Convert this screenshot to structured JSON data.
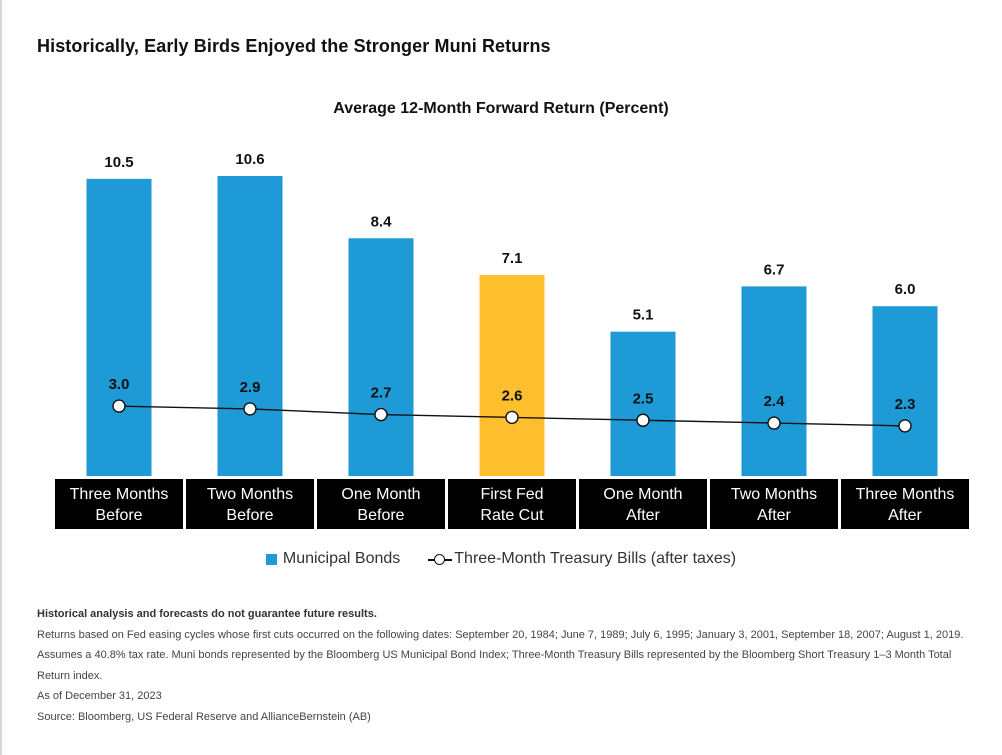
{
  "header": {
    "title": "Historically, Early Birds Enjoyed the Stronger Muni Returns"
  },
  "chart_data": {
    "type": "bar",
    "title": "Average 12-Month Forward Return (Percent)",
    "categories": [
      [
        "Three Months",
        "Before"
      ],
      [
        "Two Months",
        "Before"
      ],
      [
        "One Month",
        "Before"
      ],
      [
        "First Fed",
        "Rate Cut"
      ],
      [
        "One Month",
        "After"
      ],
      [
        "Two Months",
        "After"
      ],
      [
        "Three Months",
        "After"
      ]
    ],
    "series": [
      {
        "name": "Municipal Bonds",
        "type": "bar",
        "values": [
          10.5,
          10.6,
          8.4,
          7.1,
          5.1,
          6.7,
          6.0
        ],
        "labels": [
          "10.5",
          "10.6",
          "8.4",
          "7.1",
          "5.1",
          "6.7",
          "6.0"
        ],
        "color": "#1e9ad6",
        "highlight_index": 3,
        "highlight_color": "#fdbf2d"
      },
      {
        "name": "Three-Month Treasury Bills (after taxes)",
        "type": "line",
        "values": [
          3.0,
          2.9,
          2.7,
          2.6,
          2.5,
          2.4,
          2.3
        ],
        "labels": [
          "3.0",
          "2.9",
          "2.7",
          "2.6",
          "2.5",
          "2.4",
          "2.3"
        ],
        "color": "#111111"
      }
    ],
    "ylim": [
      0,
      11.5
    ],
    "grid": false,
    "legend_position": "bottom",
    "category_label_background": "#000000"
  },
  "legend": {
    "bonds": "Municipal Bonds",
    "bills": "Three-Month Treasury Bills (after taxes)"
  },
  "notes": {
    "disclaimer": "Historical analysis and forecasts do not guarantee future results.",
    "line1": "Returns based on Fed easing cycles whose first cuts occurred on the following dates: September 20, 1984; June 7, 1989; July 6, 1995; January 3, 2001, September 18, 2007; August 1, 2019.",
    "line2": "Assumes a 40.8% tax rate. Muni bonds represented by the Bloomberg US Municipal Bond Index; Three-Month Treasury Bills represented by the Bloomberg Short Treasury 1–3 Month Total Return index.",
    "asof": "As of December 31, 2023",
    "source": "Source: Bloomberg, US Federal Reserve and AllianceBernstein (AB)"
  }
}
